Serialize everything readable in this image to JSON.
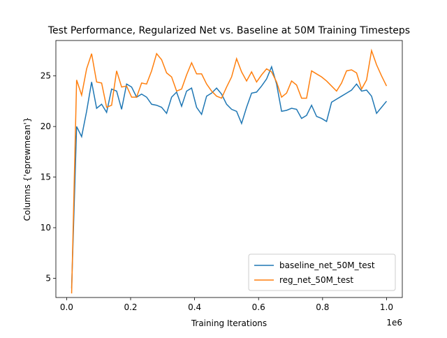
{
  "chart_data": {
    "type": "line",
    "title": "Test Performance, Regularized Net vs. Baseline at 50M Training Timesteps",
    "xlabel": "Training Iterations",
    "ylabel": "Columns {'eprewmean'}",
    "x_offset_label": "1e6",
    "x": [
      15625,
      31250,
      46875,
      62500,
      78125,
      93750,
      109375,
      125000,
      140625,
      156250,
      171875,
      187500,
      203125,
      218750,
      234375,
      250000,
      265625,
      281250,
      296875,
      312500,
      328125,
      343750,
      359375,
      375000,
      390625,
      406250,
      421875,
      437500,
      453125,
      468750,
      484375,
      500000,
      515625,
      531250,
      546875,
      562500,
      578125,
      593750,
      609375,
      625000,
      640625,
      656250,
      671875,
      687500,
      703125,
      718750,
      734375,
      750000,
      765625,
      781250,
      796875,
      812500,
      828125,
      843750,
      859375,
      875000,
      890625,
      906250,
      921875,
      937500,
      953125,
      968750,
      984375,
      1000000
    ],
    "series": [
      {
        "name": "baseline_net_50M_test",
        "color": "#1f77b4",
        "values": [
          4.0,
          20.0,
          19.0,
          21.5,
          24.4,
          21.8,
          22.2,
          21.4,
          23.7,
          23.5,
          21.7,
          24.2,
          23.9,
          22.9,
          23.2,
          22.9,
          22.2,
          22.1,
          21.9,
          21.3,
          22.9,
          23.4,
          22.0,
          23.5,
          23.8,
          21.9,
          21.2,
          23.0,
          23.3,
          23.8,
          23.2,
          22.2,
          21.7,
          21.5,
          20.3,
          21.9,
          23.3,
          23.4,
          24.0,
          24.7,
          25.9,
          24.2,
          21.5,
          21.6,
          21.8,
          21.7,
          20.8,
          21.1,
          22.1,
          21.0,
          20.8,
          20.5,
          22.4,
          22.7,
          23.0,
          23.3,
          23.6,
          24.2,
          23.5,
          23.6,
          23.0,
          21.3,
          21.9,
          22.5
        ]
      },
      {
        "name": "reg_net_50M_test",
        "color": "#ff7f0e",
        "values": [
          3.5,
          24.6,
          23.1,
          25.7,
          27.2,
          24.4,
          24.3,
          21.9,
          22.1,
          25.5,
          23.9,
          24.0,
          22.9,
          22.9,
          24.3,
          24.2,
          25.5,
          27.2,
          26.6,
          25.3,
          24.9,
          23.5,
          23.7,
          25.1,
          26.3,
          25.2,
          25.2,
          24.2,
          23.5,
          23.0,
          22.8,
          23.9,
          24.9,
          26.7,
          25.4,
          24.5,
          25.4,
          24.4,
          25.1,
          25.7,
          25.4,
          24.4,
          22.9,
          23.3,
          24.5,
          24.1,
          22.8,
          22.8,
          25.5,
          25.2,
          24.9,
          24.5,
          24.0,
          23.5,
          24.3,
          25.5,
          25.6,
          25.3,
          23.7,
          24.6,
          27.5,
          26.1,
          25.0,
          24.0
        ]
      }
    ],
    "xlim": [
      -33594,
      1049219
    ],
    "xticks": [
      {
        "value": 0,
        "label": "0.0"
      },
      {
        "value": 200000,
        "label": "0.2"
      },
      {
        "value": 400000,
        "label": "0.4"
      },
      {
        "value": 600000,
        "label": "0.6"
      },
      {
        "value": 800000,
        "label": "0.8"
      },
      {
        "value": 1000000,
        "label": "1.0"
      }
    ],
    "ylim": [
      3.1,
      28.5
    ],
    "yticks": [
      5,
      10,
      15,
      20,
      25
    ],
    "grid": false,
    "legend": "lower right"
  }
}
